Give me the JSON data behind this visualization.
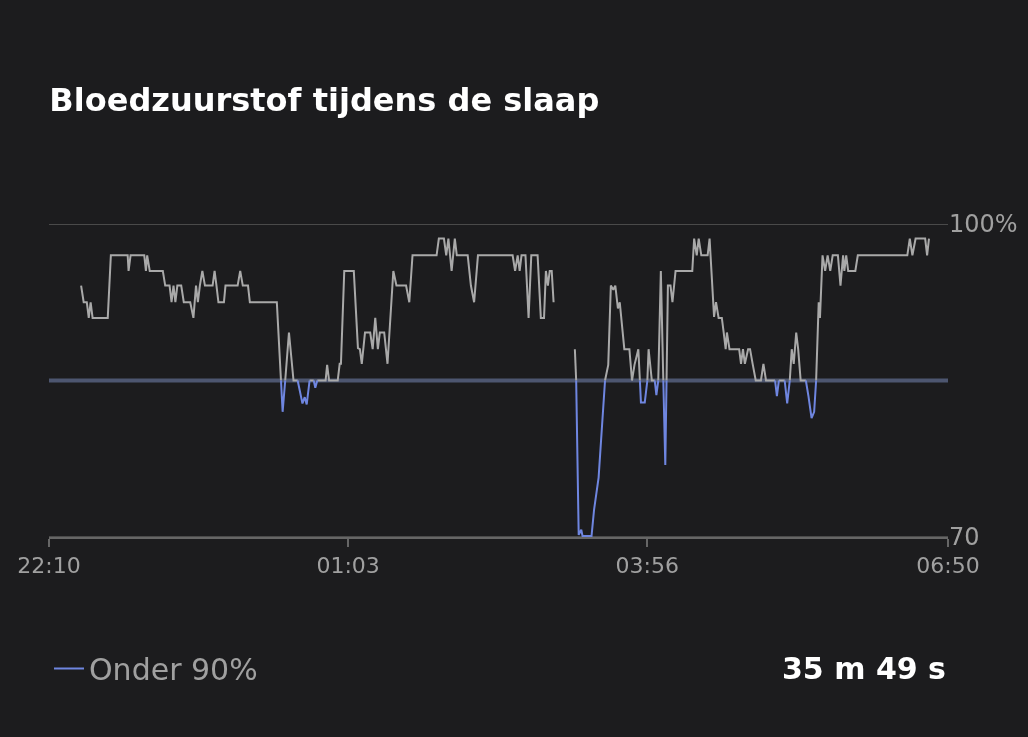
{
  "chart_data": {
    "type": "line",
    "title": "Bloedzuurstof tijdens de slaap",
    "x": [
      "--01-01T22:28:34",
      "--01-01T22:30:04",
      "--01-01T22:31:52",
      "--01-01T22:33:00",
      "--01-01T22:34:05",
      "--01-01T22:35:13",
      "--01-01T22:43:59",
      "--01-01T22:45:47",
      "--01-01T22:55:30",
      "--01-01T22:56:02",
      "--01-01T22:57:11",
      "--01-01T23:05:06",
      "--01-01T23:06:04",
      "--01-01T23:06:47",
      "--01-01T23:08:17",
      "--01-01T23:15:50",
      "--01-01T23:17:13",
      "--01-01T23:19:44",
      "--01-01T23:20:53",
      "--01-01T23:22:01",
      "--01-01T23:23:06",
      "--01-01T23:24:14",
      "--01-01T23:26:28",
      "--01-01T23:27:58",
      "--01-01T23:31:41",
      "--01-01T23:33:32",
      "--01-01T23:35:02",
      "--01-01T23:36:07",
      "--01-01T23:37:16",
      "--01-01T23:38:42",
      "--01-01T23:40:12",
      "--01-01T23:44:38",
      "--01-01T23:45:47",
      "--01-01T23:46:52",
      "--01-01T23:48:00",
      "--01-01T23:51:11",
      "--01-01T23:52:05",
      "--01-01T23:59:06",
      "--01-02T00:00:36",
      "--01-02T00:02:06",
      "--01-02T00:05:06",
      "--01-02T00:06:11",
      "--01-02T00:21:47",
      "--01-02T00:24:11",
      "--01-02T00:25:08",
      "--01-02T00:26:38",
      "--01-02T00:28:48",
      "--01-02T00:31:26",
      "--01-02T00:33:50",
      "--01-02T00:36:36",
      "--01-02T00:37:55",
      "--01-02T00:39:04",
      "--01-02T00:40:44",
      "--01-02T00:43:08",
      "--01-02T00:44:02",
      "--01-02T00:45:11",
      "--01-02T00:49:59",
      "--01-02T00:50:53",
      "--01-02T00:52:01",
      "--01-02T00:57:00",
      "--01-02T00:58:08",
      "--01-02T00:58:52",
      "--01-02T01:00:47",
      "--01-02T01:06:18",
      "--01-02T01:08:42",
      "--01-02T01:09:50",
      "--01-02T01:10:55",
      "--01-02T01:12:47",
      "--01-02T01:15:47",
      "--01-02T01:17:13",
      "--01-02T01:18:43",
      "--01-02T01:20:13",
      "--01-02T01:21:22",
      "--01-02T01:23:53",
      "--01-02T01:25:48",
      "--01-02T01:29:10",
      "--01-02T01:30:58",
      "--01-02T01:36:32",
      "--01-02T01:38:24",
      "--01-02T01:40:16",
      "--01-02T01:54:11",
      "--01-02T01:55:30",
      "--01-02T01:58:26",
      "--01-02T01:59:46",
      "--01-02T02:01:01",
      "--01-02T02:02:53",
      "--01-02T02:04:44",
      "--01-02T02:05:53",
      "--01-02T02:12:11",
      "--01-02T02:14:02",
      "--01-02T02:15:54",
      "--01-02T02:18:07",
      "--01-02T02:38:10",
      "--01-02T02:39:36",
      "--01-02T02:41:06",
      "--01-02T02:42:14",
      "--01-02T02:43:19",
      "--01-02T02:45:36",
      "--01-02T02:47:24",
      "--01-02T02:48:58",
      "--01-02T02:52:37",
      "--01-02T02:54:29",
      "--01-02T02:56:20",
      "--01-02T02:57:25",
      "--01-02T02:58:34",
      "--01-02T02:59:38",
      "--01-02T03:00:47",
      "--01-02T03:01:52",
      "--01-02T03:08:24",
      "--01-02T03:14:10",
      "--01-02T03:14:56",
      "--01-02T03:16:23",
      "--01-02T03:17:53",
      "--01-02T03:18:36",
      "--01-02T03:23:49",
      "--01-02T03:25:16",
      "--01-02T03:27:54",
      "--01-02T03:31:37",
      "--01-02T03:33:29",
      "--01-02T03:34:59",
      "--01-02T03:36:25",
      "--01-02T03:37:34",
      "--01-02T03:39:04",
      "--01-02T03:40:08",
      "--01-02T03:42:47",
      "--01-02T03:45:43",
      "--01-02T03:47:13",
      "--01-02T03:48:40",
      "--01-02T03:50:53",
      "--01-02T03:51:47",
      "--01-02T03:52:23",
      "--01-02T03:54:36",
      "--01-02T03:56:06",
      "--01-02T03:56:49",
      "--01-02T03:58:41",
      "--01-02T04:00:22",
      "--01-02T04:01:19",
      "--01-02T04:02:24",
      "--01-02T04:03:54",
      "--01-02T04:05:20",
      "--01-02T04:06:29",
      "--01-02T04:07:12",
      "--01-02T04:07:59",
      "--01-02T04:09:29",
      "--01-02T04:10:37",
      "--01-02T04:12:25",
      "--01-02T04:22:05",
      "--01-02T04:23:10",
      "--01-02T04:24:40",
      "--01-02T04:25:48",
      "--01-02T04:27:18",
      "--01-02T04:30:58",
      "--01-02T04:32:06",
      "--01-02T04:34:41",
      "--01-02T04:35:49",
      "--01-02T04:37:19",
      "--01-02T04:39:11",
      "--01-02T04:40:16",
      "--01-02T04:41:24",
      "--01-02T04:42:07",
      "--01-02T04:43:37",
      "--01-02T04:49:12",
      "--01-02T04:50:17",
      "--01-02T04:51:25",
      "--01-02T04:52:30",
      "--01-02T04:54:22",
      "--01-02T04:55:30",
      "--01-02T04:57:00",
      "--01-02T04:58:48",
      "--01-02T05:01:48",
      "--01-02T05:03:14",
      "--01-02T05:04:44",
      "--01-02T05:09:58",
      "--01-02T05:11:02",
      "--01-02T05:12:11",
      "--01-02T05:15:32",
      "--01-02T05:16:59",
      "--01-02T05:18:29",
      "--01-02T05:19:37",
      "--01-02T05:20:46",
      "--01-02T05:22:12",
      "--01-02T05:23:20",
      "--01-02T05:24:47",
      "--01-02T05:27:47",
      "--01-02T05:29:17",
      "--01-02T05:31:05",
      "--01-02T05:32:35",
      "--01-02T05:33:43",
      "--01-02T05:35:13",
      "--01-02T05:35:56",
      "--01-02T05:37:26",
      "--01-02T05:38:56",
      "--01-02T05:40:23",
      "--01-02T05:41:53",
      "--01-02T05:43:19",
      "--01-02T05:46:19",
      "--01-02T05:47:49",
      "--01-02T05:49:19",
      "--01-02T05:50:02",
      "--01-02T05:51:07",
      "--01-02T05:52:16",
      "--01-02T05:56:24",
      "--01-02T05:57:50",
      "--01-02T06:26:28",
      "--01-02T06:27:54",
      "--01-02T06:29:24",
      "--01-02T06:31:16",
      "--01-02T06:36:47",
      "--01-02T06:37:55",
      "--01-02T06:39:00"
    ],
    "series": [
      {
        "color": "#a9a9a9",
        "values": [
          94.1,
          92.5,
          92.5,
          91.0,
          92.5,
          91.0,
          91.0,
          97.0,
          97.0,
          95.5,
          97.0,
          97.0,
          95.5,
          97.0,
          95.5,
          95.5,
          94.1,
          94.1,
          92.5,
          94.1,
          92.5,
          94.1,
          94.1,
          92.5,
          92.5,
          91.0,
          94.1,
          92.5,
          94.1,
          95.5,
          94.1,
          94.1,
          95.5,
          94.1,
          92.5,
          92.5,
          94.1,
          94.1,
          95.5,
          94.1,
          94.1,
          92.5,
          92.5,
          85.0,
          null,
          85.0,
          89.6,
          85.0,
          85.0,
          null,
          null,
          null,
          85.0,
          85.0,
          null,
          85.0,
          85.0,
          86.5,
          85.0,
          85.0,
          86.6,
          86.6,
          95.5,
          95.5,
          88.1,
          88.0,
          86.6,
          89.6,
          89.6,
          88.0,
          91.0,
          88.0,
          89.6,
          89.6,
          86.6,
          95.5,
          94.1,
          94.1,
          92.5,
          97.0,
          97.0,
          98.6,
          98.6,
          97.0,
          98.6,
          95.5,
          98.6,
          97.0,
          97.0,
          94.1,
          92.5,
          97.0,
          97.0,
          95.5,
          97.0,
          95.5,
          97.0,
          97.0,
          91.0,
          97.0,
          97.0,
          91.0,
          91.0,
          95.5,
          94.1,
          95.5,
          95.5,
          92.5,
          null,
          88.0,
          85.0,
          null,
          null,
          null,
          null,
          null,
          null,
          85.0,
          86.5,
          94.1,
          93.7,
          94.1,
          91.9,
          92.5,
          88.0,
          88.0,
          85.0,
          86.5,
          88.0,
          85.0,
          null,
          null,
          85.0,
          88.0,
          85.0,
          85.0,
          null,
          85.0,
          95.5,
          85.0,
          null,
          85.0,
          94.1,
          94.1,
          92.5,
          95.5,
          95.5,
          98.6,
          97.0,
          98.6,
          97.0,
          97.0,
          98.6,
          91.1,
          92.5,
          91.0,
          91.0,
          89.6,
          88.0,
          89.6,
          88.0,
          88.0,
          86.6,
          88.0,
          86.6,
          88.0,
          88.0,
          86.6,
          85.0,
          85.0,
          86.6,
          85.0,
          85.0,
          null,
          85.0,
          85.0,
          null,
          85.0,
          88.0,
          86.6,
          89.6,
          88.0,
          85.0,
          85.0,
          null,
          null,
          null,
          85.0,
          92.5,
          91.0,
          97.0,
          95.5,
          97.0,
          95.5,
          97.0,
          97.0,
          94.1,
          97.0,
          95.5,
          97.0,
          95.5,
          95.5,
          97.0,
          97.0,
          98.6,
          97.0,
          98.6,
          98.6,
          97.0,
          98.6
        ]
      },
      {
        "name": "Onder 90%",
        "color": "#6f86e0",
        "x": [
          "--01-02T00:24:11",
          "--01-02T00:25:08",
          "--01-02T00:26:38",
          "--01-02T00:30:00",
          "--01-02T00:33:50",
          "--01-02T00:36:36",
          "--01-02T00:37:55",
          "--01-02T00:39:04",
          "--01-02T00:40:44",
          "--01-02T00:42:00",
          "--01-02T00:43:08",
          "--01-02T00:44:02",
          "--01-02T00:45:11",
          "--01-02T01:00:00",
          "--01-02T03:14:56",
          "--01-02T03:16:23",
          "--01-02T03:17:53",
          "--01-02T03:18:36",
          "--01-02T03:23:49",
          "--01-02T03:25:16",
          "--01-02T03:27:54",
          "--01-02T03:31:37",
          "--01-02T03:42:00",
          "--01-02T03:51:47",
          "--01-02T03:52:23",
          "--01-02T03:54:36",
          "--01-02T03:56:06",
          "--01-02T03:58:12",
          "--01-02T04:00:22",
          "--01-02T04:01:19",
          "--01-02T04:02:24",
          "--01-02T04:03:36",
          "--01-02T04:05:20",
          "--01-02T04:06:29",
          "--01-02T04:07:12",
          "--01-02T05:00:00",
          "--01-02T05:09:58",
          "--01-02T05:11:02",
          "--01-02T05:12:11",
          "--01-02T05:13:48",
          "--01-02T05:15:32",
          "--01-02T05:16:59",
          "--01-02T05:18:29",
          "--01-02T05:24:00",
          "--01-02T05:27:47",
          "--01-02T05:29:17",
          "--01-02T05:31:05",
          "--01-02T05:32:35",
          "--01-02T05:33:43"
        ],
        "values": [
          85.0,
          82.0,
          85.0,
          null,
          85.0,
          82.8,
          83.4,
          82.7,
          85.0,
          null,
          85.0,
          84.3,
          85.0,
          null,
          85.0,
          70.2,
          70.7,
          70.1,
          70.1,
          72.6,
          75.7,
          85.0,
          null,
          85.0,
          82.9,
          82.9,
          85.0,
          null,
          85.0,
          83.6,
          85.0,
          null,
          85.0,
          76.9,
          85.0,
          null,
          85.0,
          83.5,
          85.0,
          null,
          85.0,
          82.8,
          85.0,
          null,
          85.0,
          83.5,
          81.4,
          82.0,
          85.0
        ]
      }
    ],
    "xlim": [
      "--01-01T22:10",
      "--01-02T06:50"
    ],
    "xticks": [
      {
        "value": "--01-01T22:10",
        "label": "22:10"
      },
      {
        "value": "--01-02T01:03",
        "label": "01:03"
      },
      {
        "value": "--01-02T03:56",
        "label": "03:56"
      },
      {
        "value": "--01-02T06:50",
        "label": "06:50"
      }
    ],
    "ylim": [
      70,
      100
    ],
    "yticks": [
      70,
      {
        "value": 100,
        "label": "100%"
      }
    ],
    "grid": "y",
    "ref_lines": [
      {
        "axis": "y",
        "value": 85,
        "color": "#4d5670"
      }
    ],
    "legend": "bottom left",
    "marker": "none",
    "line_style": "solid",
    "annotations": [
      "35 m 49 s"
    ]
  }
}
